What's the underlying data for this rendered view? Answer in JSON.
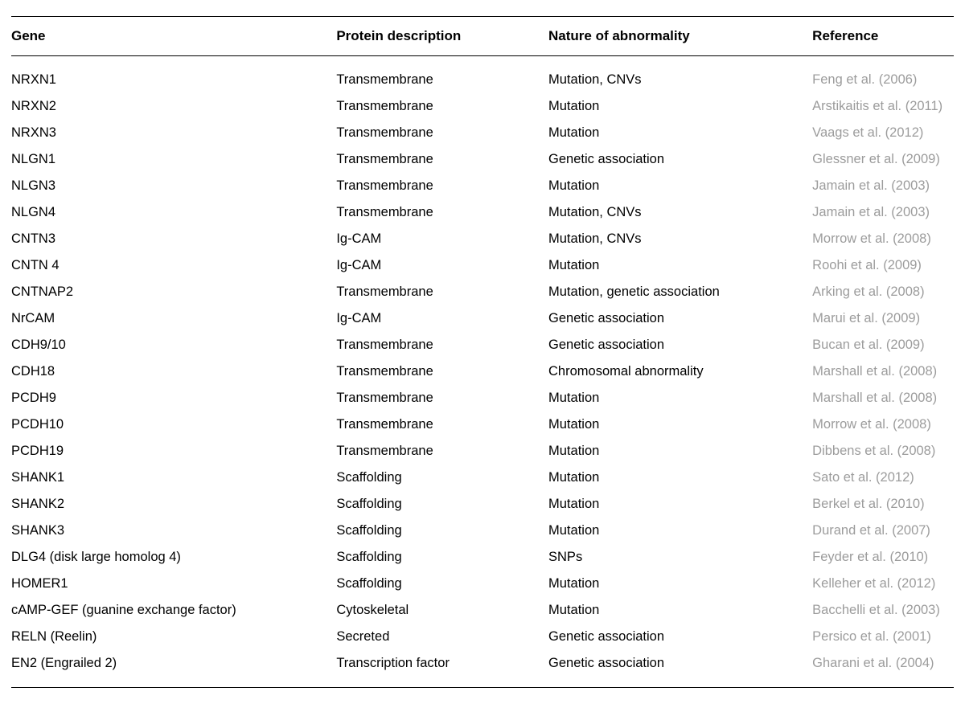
{
  "table": {
    "columns": [
      {
        "label": "Gene",
        "class": "col-gene"
      },
      {
        "label": "Protein description",
        "class": "col-protein"
      },
      {
        "label": "Nature of abnormality",
        "class": "col-nature"
      },
      {
        "label": "Reference",
        "class": "col-reference"
      }
    ],
    "rows": [
      {
        "gene": "NRXN1",
        "protein": "Transmembrane",
        "nature": "Mutation, CNVs",
        "reference": "Feng et al. (2006)"
      },
      {
        "gene": "NRXN2",
        "protein": "Transmembrane",
        "nature": "Mutation",
        "reference": "Arstikaitis et al. (2011)"
      },
      {
        "gene": "NRXN3",
        "protein": "Transmembrane",
        "nature": "Mutation",
        "reference": "Vaags et al. (2012)"
      },
      {
        "gene": "NLGN1",
        "protein": "Transmembrane",
        "nature": "Genetic association",
        "reference": "Glessner et al. (2009)"
      },
      {
        "gene": "NLGN3",
        "protein": "Transmembrane",
        "nature": "Mutation",
        "reference": "Jamain et al. (2003)"
      },
      {
        "gene": "NLGN4",
        "protein": "Transmembrane",
        "nature": "Mutation, CNVs",
        "reference": "Jamain et al. (2003)"
      },
      {
        "gene": "CNTN3",
        "protein": "Ig-CAM",
        "nature": "Mutation, CNVs",
        "reference": "Morrow et al. (2008)"
      },
      {
        "gene": "CNTN 4",
        "protein": "Ig-CAM",
        "nature": "Mutation",
        "reference": "Roohi et al. (2009)"
      },
      {
        "gene": "CNTNAP2",
        "protein": "Transmembrane",
        "nature": "Mutation, genetic association",
        "reference": "Arking et al. (2008)"
      },
      {
        "gene": "NrCAM",
        "protein": "Ig-CAM",
        "nature": "Genetic association",
        "reference": "Marui et al. (2009)"
      },
      {
        "gene": "CDH9/10",
        "protein": "Transmembrane",
        "nature": "Genetic association",
        "reference": "Bucan et al. (2009)"
      },
      {
        "gene": "CDH18",
        "protein": "Transmembrane",
        "nature": "Chromosomal abnormality",
        "reference": "Marshall et al. (2008)"
      },
      {
        "gene": "PCDH9",
        "protein": "Transmembrane",
        "nature": "Mutation",
        "reference": "Marshall et al. (2008)"
      },
      {
        "gene": "PCDH10",
        "protein": "Transmembrane",
        "nature": "Mutation",
        "reference": "Morrow et al. (2008)"
      },
      {
        "gene": "PCDH19",
        "protein": "Transmembrane",
        "nature": "Mutation",
        "reference": "Dibbens et al. (2008)"
      },
      {
        "gene": "SHANK1",
        "protein": "Scaffolding",
        "nature": "Mutation",
        "reference": "Sato et al. (2012)"
      },
      {
        "gene": "SHANK2",
        "protein": "Scaffolding",
        "nature": "Mutation",
        "reference": "Berkel et al. (2010)"
      },
      {
        "gene": "SHANK3",
        "protein": "Scaffolding",
        "nature": "Mutation",
        "reference": "Durand et al. (2007)"
      },
      {
        "gene": "DLG4 (disk large homolog 4)",
        "protein": "Scaffolding",
        "nature": "SNPs",
        "reference": "Feyder et al. (2010)"
      },
      {
        "gene": "HOMER1",
        "protein": "Scaffolding",
        "nature": "Mutation",
        "reference": "Kelleher et al. (2012)"
      },
      {
        "gene": "cAMP-GEF (guanine exchange factor)",
        "protein": "Cytoskeletal",
        "nature": "Mutation",
        "reference": "Bacchelli et al. (2003)"
      },
      {
        "gene": "RELN (Reelin)",
        "protein": "Secreted",
        "nature": "Genetic association",
        "reference": "Persico et al. (2001)"
      },
      {
        "gene": "EN2 (Engrailed 2)",
        "protein": "Transcription factor",
        "nature": "Genetic association",
        "reference": "Gharani et al. (2004)"
      }
    ],
    "style": {
      "border_color": "#000000",
      "text_color": "#000000",
      "reference_color": "#9c9c9c",
      "background_color": "#ffffff",
      "header_fontsize": 17,
      "body_fontsize": 16.5,
      "font_family": "Arial, Helvetica, sans-serif"
    }
  }
}
